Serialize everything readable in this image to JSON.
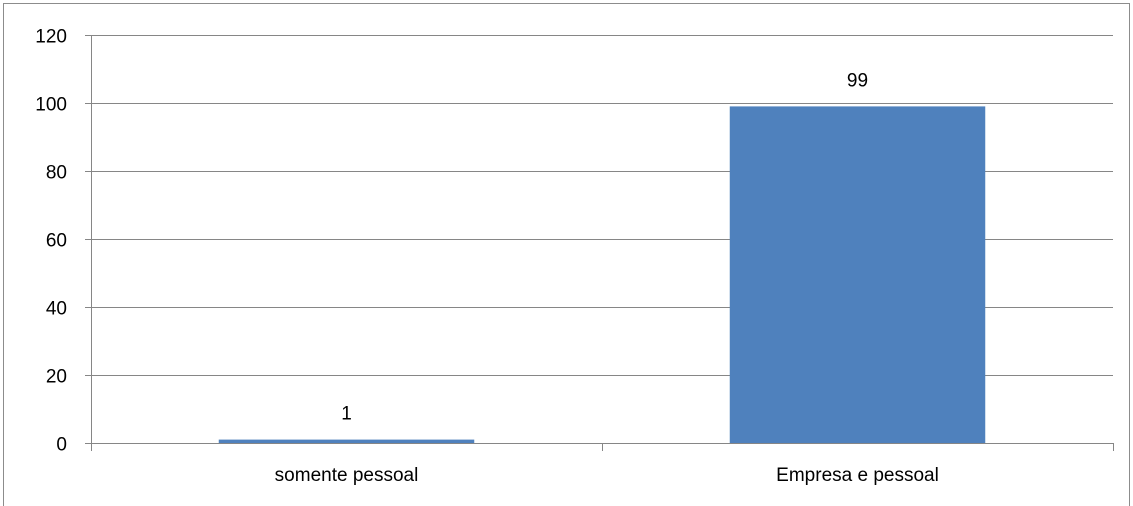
{
  "chart_data": {
    "type": "bar",
    "categories": [
      "somente pessoal",
      "Empresa e pessoal"
    ],
    "values": [
      1,
      99
    ],
    "data_labels": [
      "1",
      "99"
    ],
    "y_ticks": [
      "0",
      "20",
      "40",
      "60",
      "80",
      "100",
      "120"
    ],
    "title": "",
    "xlabel": "",
    "ylabel": "",
    "ylim": [
      0,
      120
    ],
    "grid": true,
    "legend": "none",
    "bar_color": "#4f81bd",
    "grid_color": "#868686"
  }
}
